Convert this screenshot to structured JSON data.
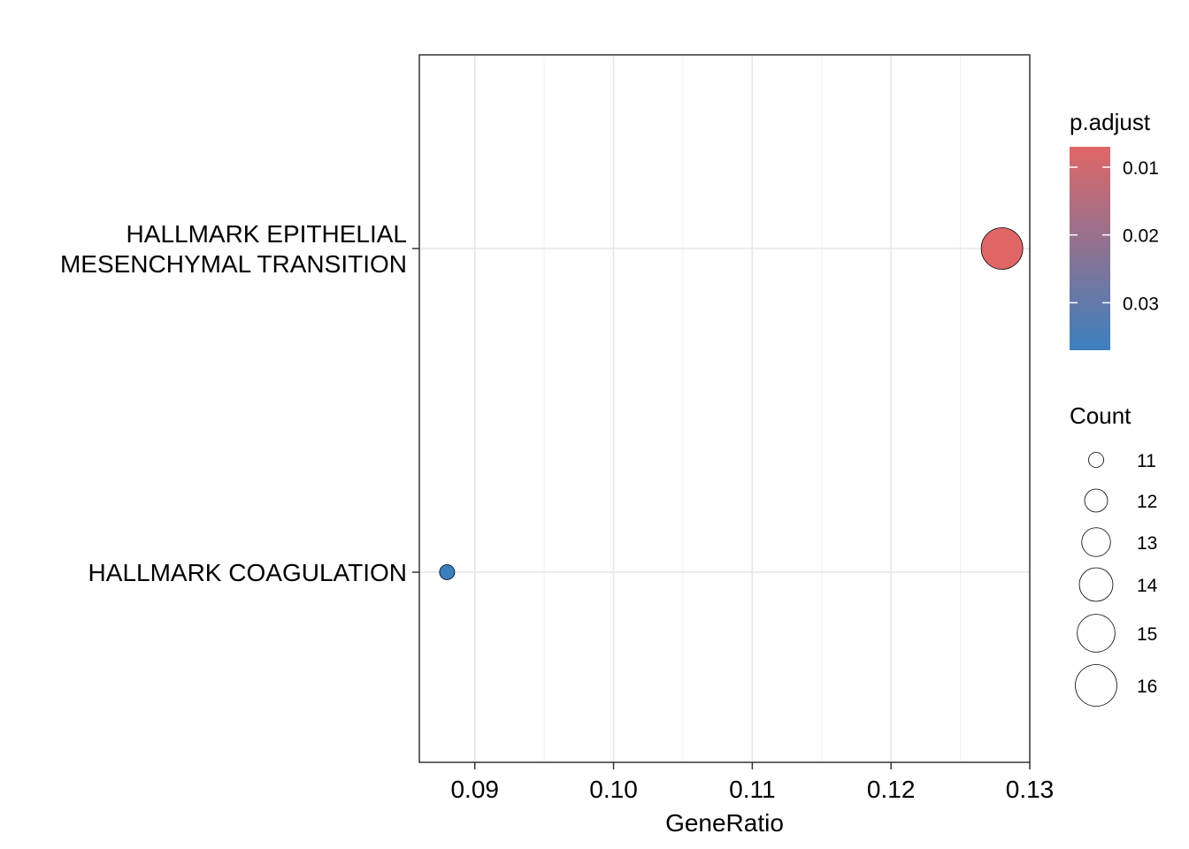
{
  "chart_data": {
    "type": "scatter",
    "title": "",
    "xlabel": "GeneRatio",
    "ylabel": "",
    "xlim": [
      0.086,
      0.13
    ],
    "x_ticks": [
      0.09,
      0.1,
      0.11,
      0.12,
      0.13
    ],
    "x_tick_labels": [
      "0.09",
      "0.10",
      "0.11",
      "0.12",
      "0.13"
    ],
    "grid": true,
    "categories": [
      "HALLMARK EPITHELIAL\nMESENCHYMAL TRANSITION",
      "HALLMARK COAGULATION"
    ],
    "points": [
      {
        "category": "HALLMARK EPITHELIAL\nMESENCHYMAL TRANSITION",
        "x": 0.128,
        "count": 16,
        "p_adjust": 0.007
      },
      {
        "category": "HALLMARK COAGULATION",
        "x": 0.088,
        "count": 11,
        "p_adjust": 0.037
      }
    ],
    "color_legend": {
      "title": "p.adjust",
      "range": [
        0.007,
        0.037
      ],
      "low_color": "#E06666",
      "high_color": "#3C7FBF",
      "ticks": [
        0.01,
        0.02,
        0.03
      ],
      "tick_labels": [
        "0.01",
        "0.02",
        "0.03"
      ]
    },
    "size_legend": {
      "title": "Count",
      "values": [
        11,
        12,
        13,
        14,
        15,
        16
      ],
      "labels": [
        "11",
        "12",
        "13",
        "14",
        "15",
        "16"
      ]
    },
    "legend_position": "right"
  }
}
